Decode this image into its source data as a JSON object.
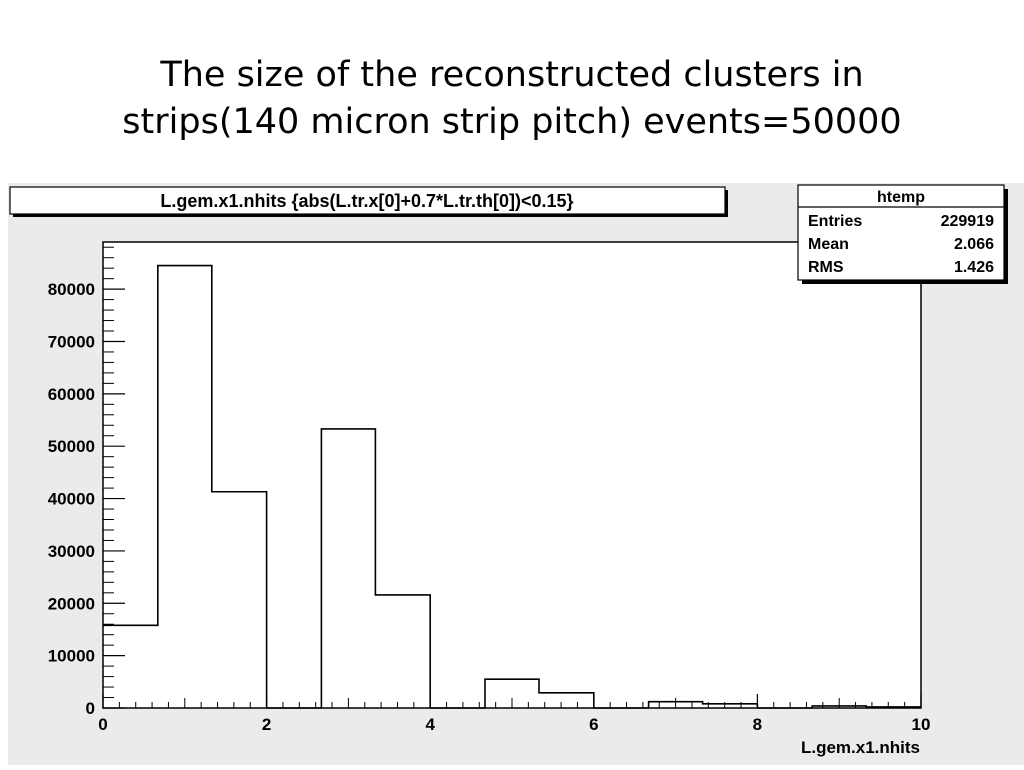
{
  "slide": {
    "title_line1": "The size of the reconstructed clusters in",
    "title_line2": "strips(140 micron strip pitch) events=50000"
  },
  "chart_data": {
    "type": "bar",
    "title": "L.gem.x1.nhits {abs(L.tr.x[0]+0.7*L.tr.th[0])<0.15}",
    "xlabel": "L.gem.x1.nhits",
    "ylabel": "",
    "xlim": [
      0,
      10
    ],
    "ylim": [
      0,
      89000
    ],
    "x_ticks": [
      0,
      2,
      4,
      6,
      8,
      10
    ],
    "y_ticks": [
      0,
      10000,
      20000,
      30000,
      40000,
      50000,
      60000,
      70000,
      80000
    ],
    "bins": [
      {
        "x0": 0.0,
        "x1": 0.67,
        "value": 15800
      },
      {
        "x0": 0.67,
        "x1": 1.33,
        "value": 84500
      },
      {
        "x0": 1.33,
        "x1": 2.0,
        "value": 41300
      },
      {
        "x0": 2.0,
        "x1": 2.67,
        "value": 0
      },
      {
        "x0": 2.67,
        "x1": 3.33,
        "value": 53300
      },
      {
        "x0": 3.33,
        "x1": 4.0,
        "value": 21600
      },
      {
        "x0": 4.0,
        "x1": 4.67,
        "value": 0
      },
      {
        "x0": 4.67,
        "x1": 5.33,
        "value": 5500
      },
      {
        "x0": 5.33,
        "x1": 6.0,
        "value": 2900
      },
      {
        "x0": 6.0,
        "x1": 6.67,
        "value": 0
      },
      {
        "x0": 6.67,
        "x1": 7.33,
        "value": 1200
      },
      {
        "x0": 7.33,
        "x1": 8.0,
        "value": 800
      },
      {
        "x0": 8.0,
        "x1": 8.67,
        "value": 0
      },
      {
        "x0": 8.67,
        "x1": 9.33,
        "value": 400
      },
      {
        "x0": 9.33,
        "x1": 10.0,
        "value": 200
      }
    ],
    "stats_box": {
      "name": "htemp",
      "rows": [
        {
          "label": "Entries",
          "value": "229919"
        },
        {
          "label": "Mean",
          "value": "2.066"
        },
        {
          "label": "RMS",
          "value": "1.426"
        }
      ]
    },
    "grid": false,
    "colors": {
      "frame_bg": "#ebebeb",
      "plot_bg": "#ffffff",
      "line": "#000000"
    }
  }
}
